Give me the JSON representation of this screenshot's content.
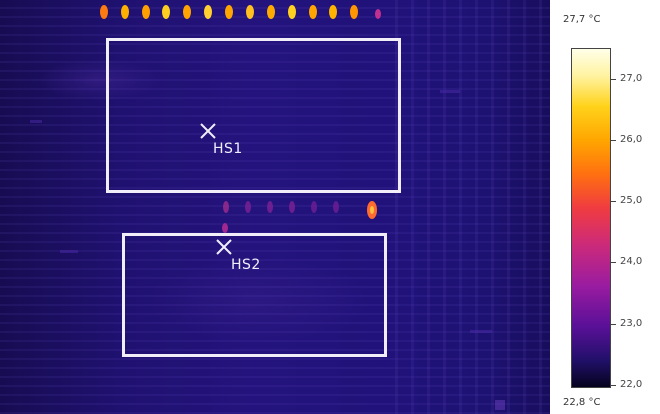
{
  "thermal_image": {
    "rois": [
      {
        "label": "HS1"
      },
      {
        "label": "HS2"
      }
    ],
    "marker_icon": "crosshair-x-icon",
    "roi_color": "#f1eefa"
  },
  "color_scale": {
    "max_label": "27,7 °C",
    "min_label": "22,8 °C",
    "ticks": [
      "27,0",
      "26,0",
      "25,0",
      "24,0",
      "23,0",
      "22,0"
    ],
    "palette": "ironbow"
  }
}
